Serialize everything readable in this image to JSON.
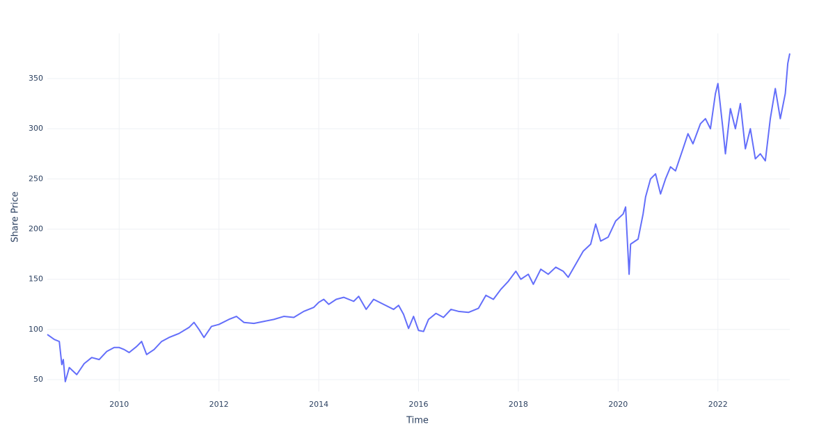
{
  "chart_data": {
    "type": "line",
    "x_label": "Time",
    "y_label": "Share Price",
    "x": [
      2008.56,
      2008.7,
      2008.8,
      2008.85,
      2008.88,
      2008.92,
      2009.0,
      2009.15,
      2009.3,
      2009.45,
      2009.6,
      2009.75,
      2009.9,
      2010.0,
      2010.1,
      2010.2,
      2010.35,
      2010.45,
      2010.55,
      2010.7,
      2010.85,
      2011.0,
      2011.2,
      2011.4,
      2011.5,
      2011.6,
      2011.7,
      2011.85,
      2012.0,
      2012.2,
      2012.35,
      2012.5,
      2012.7,
      2012.9,
      2013.1,
      2013.3,
      2013.5,
      2013.7,
      2013.9,
      2014.0,
      2014.1,
      2014.2,
      2014.35,
      2014.5,
      2014.7,
      2014.8,
      2014.95,
      2015.1,
      2015.3,
      2015.5,
      2015.6,
      2015.7,
      2015.8,
      2015.9,
      2016.0,
      2016.1,
      2016.2,
      2016.35,
      2016.5,
      2016.65,
      2016.8,
      2017.0,
      2017.2,
      2017.35,
      2017.5,
      2017.65,
      2017.8,
      2017.95,
      2018.05,
      2018.2,
      2018.3,
      2018.45,
      2018.6,
      2018.75,
      2018.9,
      2019.0,
      2019.15,
      2019.3,
      2019.45,
      2019.55,
      2019.65,
      2019.8,
      2019.95,
      2020.1,
      2020.15,
      2020.22,
      2020.25,
      2020.4,
      2020.5,
      2020.55,
      2020.65,
      2020.75,
      2020.85,
      2020.95,
      2021.05,
      2021.15,
      2021.3,
      2021.4,
      2021.5,
      2021.65,
      2021.75,
      2021.85,
      2021.95,
      2022.0,
      2022.1,
      2022.15,
      2022.25,
      2022.35,
      2022.45,
      2022.55,
      2022.65,
      2022.75,
      2022.85,
      2022.95,
      2023.05,
      2023.15,
      2023.25,
      2023.35,
      2023.4,
      2023.44
    ],
    "series": [
      {
        "color": "#636efa",
        "values": [
          95,
          90,
          88,
          65,
          70,
          48,
          62,
          55,
          66,
          72,
          70,
          78,
          82,
          82,
          80,
          77,
          83,
          88,
          75,
          80,
          88,
          92,
          96,
          102,
          107,
          100,
          92,
          103,
          105,
          110,
          113,
          107,
          106,
          108,
          110,
          113,
          112,
          118,
          122,
          127,
          130,
          125,
          130,
          132,
          128,
          133,
          120,
          130,
          125,
          120,
          124,
          115,
          101,
          113,
          99,
          98,
          110,
          116,
          112,
          120,
          118,
          117,
          121,
          134,
          130,
          140,
          148,
          158,
          150,
          155,
          145,
          160,
          155,
          162,
          158,
          152,
          165,
          178,
          185,
          205,
          188,
          192,
          208,
          215,
          222,
          155,
          185,
          190,
          215,
          232,
          250,
          255,
          235,
          250,
          262,
          258,
          280,
          295,
          285,
          305,
          310,
          300,
          335,
          345,
          300,
          275,
          320,
          300,
          325,
          280,
          300,
          270,
          275,
          268,
          310,
          340,
          310,
          335,
          365,
          375
        ]
      }
    ],
    "xlim": [
      2008.56,
      2023.44
    ],
    "ylim": [
      38.2,
      395
    ],
    "xticks": [
      2010,
      2012,
      2014,
      2016,
      2018,
      2020,
      2022
    ],
    "yticks": [
      50,
      100,
      150,
      200,
      250,
      300,
      350
    ],
    "grid": true
  }
}
